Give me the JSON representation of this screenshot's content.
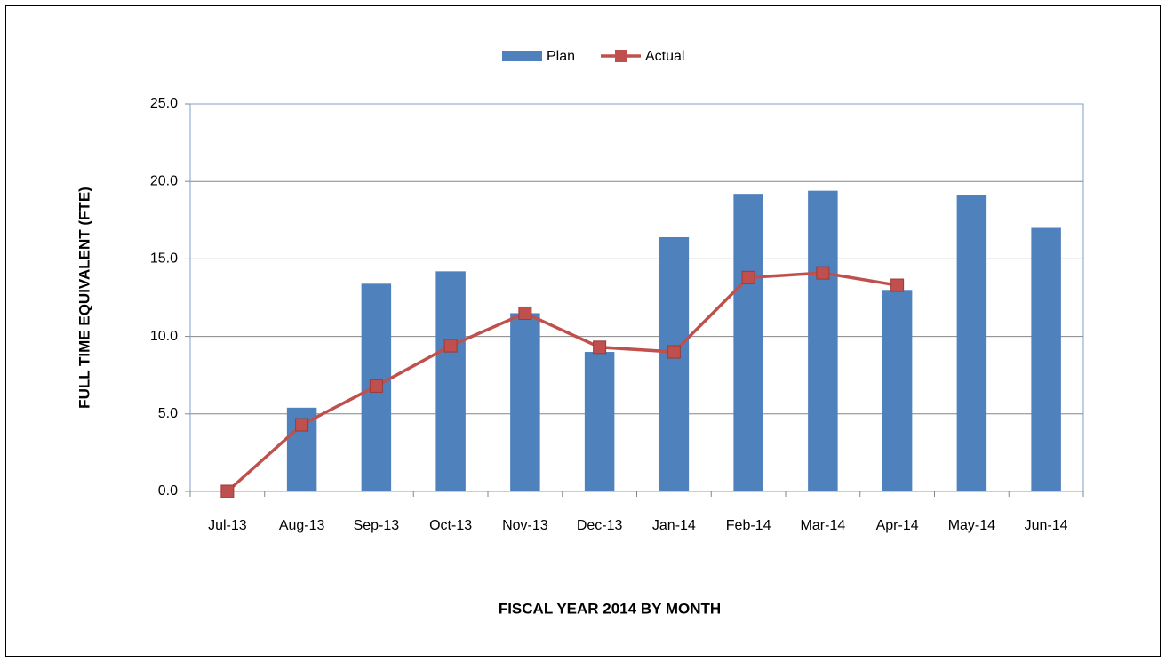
{
  "chart_data": {
    "type": "bar-line",
    "x_label": "FISCAL YEAR 2014 BY MONTH",
    "y_label": "FULL TIME EQUIVALENT (FTE)",
    "categories": [
      "Jul-13",
      "Aug-13",
      "Sep-13",
      "Oct-13",
      "Nov-13",
      "Dec-13",
      "Jan-14",
      "Feb-14",
      "Mar-14",
      "Apr-14",
      "May-14",
      "Jun-14"
    ],
    "series": [
      {
        "name": "Plan",
        "type": "bar",
        "color": "#4f81bd",
        "values": [
          0,
          5.4,
          13.4,
          14.2,
          11.5,
          9.0,
          16.4,
          19.2,
          19.4,
          13.0,
          19.1,
          17.0
        ]
      },
      {
        "name": "Actual",
        "type": "line",
        "color": "#c0504d",
        "values": [
          0,
          4.3,
          6.8,
          9.4,
          11.5,
          9.3,
          9.0,
          13.8,
          14.1,
          13.3,
          null,
          null
        ]
      }
    ],
    "ylim": [
      0,
      25
    ],
    "yticks": [
      {
        "value": 0,
        "label": "0.0"
      },
      {
        "value": 5,
        "label": "5.0"
      },
      {
        "value": 10,
        "label": "10.0"
      },
      {
        "value": 15,
        "label": "15.0"
      },
      {
        "value": 20,
        "label": "20.0"
      },
      {
        "value": 25,
        "label": "25.0"
      }
    ],
    "grid": true,
    "legend": "top"
  }
}
